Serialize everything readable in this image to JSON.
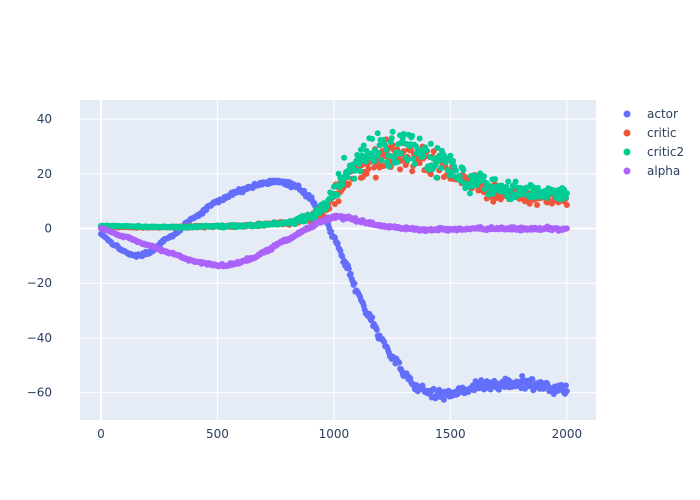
{
  "chart_data": {
    "type": "scatter",
    "plot_bgcolor": "#e5ecf6",
    "grid": true,
    "legend_position": "top-right",
    "xlim": [
      -90,
      2125
    ],
    "ylim": [
      -70,
      47
    ],
    "x_ticks": [
      0,
      500,
      1000,
      1500,
      2000
    ],
    "x_tick_labels": [
      "0",
      "500",
      "1000",
      "1500",
      "2000"
    ],
    "y_ticks": [
      40,
      20,
      0,
      -20,
      -40,
      -60
    ],
    "y_tick_labels": [
      "40",
      "20",
      "0",
      "−20",
      "−40",
      "−60"
    ],
    "x_range": [
      0,
      2000
    ],
    "series": [
      {
        "name": "actor",
        "color": "#636efa",
        "anchors": [
          [
            0,
            -2
          ],
          [
            60,
            -6
          ],
          [
            100,
            -8.5
          ],
          [
            150,
            -10
          ],
          [
            200,
            -9
          ],
          [
            300,
            -3
          ],
          [
            400,
            4
          ],
          [
            500,
            10
          ],
          [
            600,
            14
          ],
          [
            700,
            16.8
          ],
          [
            780,
            17
          ],
          [
            850,
            15
          ],
          [
            900,
            11
          ],
          [
            950,
            5
          ],
          [
            1000,
            -3
          ],
          [
            1050,
            -13
          ],
          [
            1100,
            -23
          ],
          [
            1150,
            -32
          ],
          [
            1200,
            -40
          ],
          [
            1250,
            -47
          ],
          [
            1300,
            -53
          ],
          [
            1350,
            -57.5
          ],
          [
            1400,
            -60
          ],
          [
            1450,
            -61
          ],
          [
            1500,
            -60
          ],
          [
            1550,
            -59
          ],
          [
            1600,
            -58
          ],
          [
            1650,
            -57.5
          ],
          [
            1700,
            -57
          ],
          [
            1750,
            -57
          ],
          [
            1800,
            -56.5
          ],
          [
            1850,
            -57
          ],
          [
            1900,
            -57.5
          ],
          [
            1950,
            -58
          ],
          [
            2000,
            -59
          ]
        ],
        "noise": [
          [
            0,
            0.3
          ],
          [
            1000,
            0.6
          ],
          [
            1300,
            1.2
          ],
          [
            1400,
            1.5
          ],
          [
            1700,
            1.6
          ],
          [
            2000,
            1.7
          ]
        ]
      },
      {
        "name": "critic",
        "color": "#ef553b",
        "anchors": [
          [
            0,
            0.5
          ],
          [
            300,
            0.5
          ],
          [
            600,
            1
          ],
          [
            800,
            2
          ],
          [
            900,
            3.5
          ],
          [
            950,
            6
          ],
          [
            1000,
            12
          ],
          [
            1050,
            18
          ],
          [
            1100,
            22
          ],
          [
            1150,
            25
          ],
          [
            1200,
            26
          ],
          [
            1250,
            27.5
          ],
          [
            1300,
            28
          ],
          [
            1350,
            27
          ],
          [
            1400,
            25
          ],
          [
            1450,
            23
          ],
          [
            1500,
            20.5
          ],
          [
            1550,
            18
          ],
          [
            1600,
            16
          ],
          [
            1650,
            15
          ],
          [
            1700,
            13.5
          ],
          [
            1750,
            13
          ],
          [
            1800,
            12
          ],
          [
            1900,
            11
          ],
          [
            2000,
            10.5
          ]
        ],
        "noise": [
          [
            0,
            0.1
          ],
          [
            800,
            0.4
          ],
          [
            950,
            1.5
          ],
          [
            1050,
            3
          ],
          [
            1200,
            4
          ],
          [
            1400,
            3.5
          ],
          [
            1600,
            2.5
          ],
          [
            1800,
            2
          ],
          [
            2000,
            1.5
          ]
        ]
      },
      {
        "name": "critic2",
        "color": "#00cc96",
        "anchors": [
          [
            0,
            1
          ],
          [
            300,
            0.5
          ],
          [
            600,
            1
          ],
          [
            800,
            2
          ],
          [
            900,
            4
          ],
          [
            950,
            7
          ],
          [
            1000,
            13
          ],
          [
            1050,
            20
          ],
          [
            1100,
            24
          ],
          [
            1150,
            27
          ],
          [
            1200,
            28.5
          ],
          [
            1250,
            30
          ],
          [
            1300,
            30.5
          ],
          [
            1350,
            29
          ],
          [
            1400,
            27
          ],
          [
            1450,
            25
          ],
          [
            1500,
            22.5
          ],
          [
            1550,
            20
          ],
          [
            1600,
            18
          ],
          [
            1650,
            17
          ],
          [
            1700,
            15.5
          ],
          [
            1750,
            14.5
          ],
          [
            1800,
            13.5
          ],
          [
            1900,
            13
          ],
          [
            2000,
            12
          ]
        ],
        "noise": [
          [
            0,
            0.1
          ],
          [
            800,
            0.4
          ],
          [
            950,
            1.8
          ],
          [
            1050,
            3.5
          ],
          [
            1200,
            4.5
          ],
          [
            1400,
            4
          ],
          [
            1600,
            3
          ],
          [
            1800,
            2.2
          ],
          [
            2000,
            1.8
          ]
        ]
      },
      {
        "name": "alpha",
        "color": "#ab63fa",
        "anchors": [
          [
            0,
            0
          ],
          [
            100,
            -3
          ],
          [
            200,
            -6
          ],
          [
            300,
            -9
          ],
          [
            400,
            -12
          ],
          [
            500,
            -13.5
          ],
          [
            560,
            -13.2
          ],
          [
            650,
            -11
          ],
          [
            700,
            -8.5
          ],
          [
            800,
            -4
          ],
          [
            900,
            0.5
          ],
          [
            950,
            3
          ],
          [
            1000,
            4.5
          ],
          [
            1050,
            4
          ],
          [
            1100,
            3
          ],
          [
            1150,
            2
          ],
          [
            1200,
            1
          ],
          [
            1300,
            0
          ],
          [
            1400,
            -0.5
          ],
          [
            1500,
            -0.3
          ],
          [
            1600,
            0
          ],
          [
            1700,
            0
          ],
          [
            1800,
            -0.2
          ],
          [
            1900,
            0
          ],
          [
            2000,
            -0.3
          ]
        ],
        "noise": [
          [
            0,
            0.2
          ],
          [
            900,
            0.4
          ],
          [
            1000,
            0.7
          ],
          [
            1200,
            0.4
          ],
          [
            2000,
            0.4
          ]
        ]
      }
    ]
  }
}
